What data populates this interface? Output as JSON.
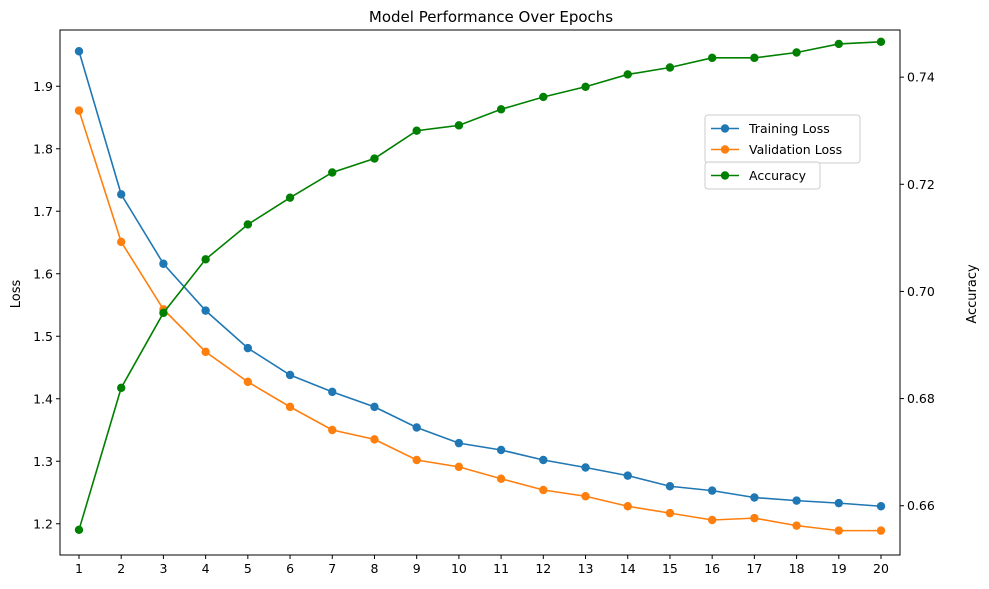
{
  "chart_data": {
    "type": "line",
    "title": "Model Performance Over Epochs",
    "xlabel": "",
    "ylabel": "Loss",
    "y2label": "Accuracy",
    "x": [
      1,
      2,
      3,
      4,
      5,
      6,
      7,
      8,
      9,
      10,
      11,
      12,
      13,
      14,
      15,
      16,
      17,
      18,
      19,
      20
    ],
    "xlim": [
      0.55,
      20.45
    ],
    "ylim": [
      1.15,
      1.99
    ],
    "y2lim": [
      0.6508,
      0.7488
    ],
    "yticks": [
      "1.2",
      "1.3",
      "1.4",
      "1.5",
      "1.6",
      "1.7",
      "1.8",
      "1.9"
    ],
    "y2ticks": [
      "0.66",
      "0.68",
      "0.70",
      "0.72",
      "0.74"
    ],
    "series": [
      {
        "name": "Training Loss",
        "axis": "left",
        "color": "#1f77b4",
        "values": [
          1.956,
          1.727,
          1.616,
          1.541,
          1.481,
          1.438,
          1.411,
          1.387,
          1.354,
          1.329,
          1.318,
          1.302,
          1.29,
          1.277,
          1.26,
          1.253,
          1.242,
          1.237,
          1.233,
          1.228
        ]
      },
      {
        "name": "Validation Loss",
        "axis": "left",
        "color": "#ff7f0e",
        "values": [
          1.861,
          1.651,
          1.543,
          1.475,
          1.427,
          1.387,
          1.35,
          1.335,
          1.302,
          1.291,
          1.272,
          1.254,
          1.244,
          1.228,
          1.217,
          1.206,
          1.209,
          1.197,
          1.189,
          1.189
        ]
      },
      {
        "name": "Accuracy",
        "axis": "right",
        "color": "#008000",
        "values": [
          0.6555,
          0.682,
          0.696,
          0.706,
          0.7125,
          0.7175,
          0.7222,
          0.7248,
          0.73,
          0.731,
          0.734,
          0.7363,
          0.7382,
          0.7405,
          0.7418,
          0.7436,
          0.7436,
          0.7446,
          0.7462,
          0.7466
        ]
      }
    ],
    "legend_left": [
      "Training Loss",
      "Validation Loss"
    ],
    "legend_right": [
      "Accuracy"
    ],
    "legend_placement": "upper-right"
  }
}
